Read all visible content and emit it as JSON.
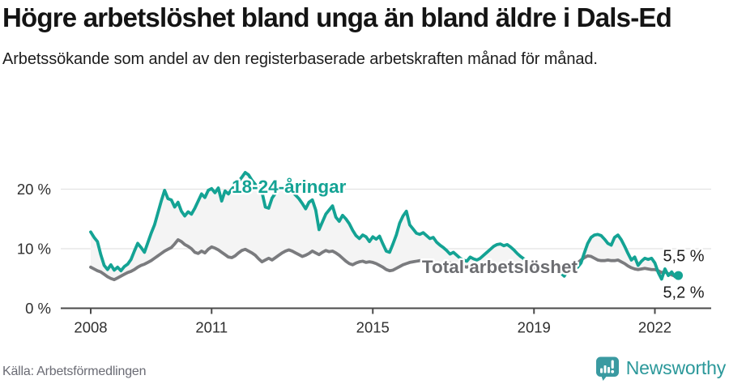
{
  "header": {
    "title": "Högre arbetslöshet bland unga än bland äldre i Dals-Ed",
    "subtitle": "Arbetssökande som andel av den registerbaserade arbetskraften månad för månad."
  },
  "chart_data": {
    "type": "line",
    "x_start_year": 2008,
    "x_interval": "monthly",
    "x_end_label_period": "aug 2022",
    "ylim": [
      0,
      26
    ],
    "grid": "horizontal",
    "grid_color": "#e2e2e2",
    "axis_color": "#4a4a4a",
    "tick_label_color": "#2f2f2f",
    "band_fill": "#f4f4f4",
    "yticks": [
      {
        "value": 0,
        "label": "0 %"
      },
      {
        "value": 10,
        "label": "10 %"
      },
      {
        "value": 20,
        "label": "20 %"
      }
    ],
    "xticks": [
      {
        "value": 2008,
        "label": "2008"
      },
      {
        "value": 2011,
        "label": "2011"
      },
      {
        "value": 2015,
        "label": "2015"
      },
      {
        "value": 2019,
        "label": "2019"
      },
      {
        "value": 2022,
        "label": "2022"
      }
    ],
    "series": [
      {
        "name": "18-24-åringar",
        "color": "#14a394",
        "end_dot": true,
        "values": [
          12.8,
          11.9,
          11.2,
          9.0,
          7.2,
          6.5,
          7.3,
          6.4,
          6.9,
          6.3,
          7.0,
          7.4,
          8.2,
          9.6,
          10.9,
          10.2,
          9.4,
          11.0,
          12.6,
          14.0,
          16.0,
          18.0,
          19.8,
          18.4,
          18.2,
          17.0,
          17.8,
          16.3,
          15.5,
          16.2,
          15.8,
          16.8,
          18.0,
          19.2,
          18.6,
          19.8,
          20.1,
          19.4,
          20.2,
          18.0,
          19.7,
          19.2,
          20.0,
          20.6,
          21.3,
          22.0,
          22.8,
          22.4,
          21.5,
          20.8,
          20.3,
          19.5,
          17.0,
          16.8,
          18.5,
          19.3,
          20.0,
          20.4,
          19.7,
          20.3,
          19.5,
          19.0,
          18.4,
          17.6,
          16.7,
          17.8,
          18.2,
          16.5,
          13.2,
          14.5,
          15.8,
          16.5,
          17.2,
          15.3,
          14.6,
          15.6,
          15.0,
          14.2,
          13.1,
          12.2,
          11.7,
          12.3,
          12.0,
          11.2,
          12.0,
          11.6,
          12.1,
          10.8,
          9.6,
          9.4,
          10.8,
          12.3,
          14.3,
          15.5,
          16.3,
          14.0,
          13.3,
          12.6,
          12.4,
          12.7,
          12.2,
          11.7,
          11.9,
          11.1,
          10.6,
          10.2,
          9.7,
          9.1,
          9.4,
          8.9,
          8.4,
          8.1,
          7.9,
          8.6,
          8.3,
          8.1,
          8.4,
          8.9,
          9.4,
          9.9,
          10.4,
          10.7,
          10.8,
          10.5,
          10.7,
          10.3,
          9.8,
          9.2,
          8.7,
          8.3,
          7.9,
          7.6,
          7.3,
          7.0,
          6.7,
          6.4,
          6.2,
          6.6,
          6.7,
          6.3,
          5.9,
          5.4,
          6.3,
          6.9,
          6.6,
          6.9,
          7.6,
          9.3,
          10.9,
          11.9,
          12.3,
          12.4,
          12.2,
          11.6,
          10.9,
          10.6,
          11.9,
          12.3,
          11.5,
          10.4,
          9.2,
          8.1,
          8.6,
          7.2,
          7.9,
          8.4,
          8.2,
          8.4,
          7.6,
          6.0,
          4.9,
          6.6,
          5.5,
          6.1,
          5.3,
          5.5
        ]
      },
      {
        "name": "Total arbetslöshet",
        "color": "#7a7b7e",
        "end_dot": false,
        "values": [
          6.9,
          6.6,
          6.3,
          6.1,
          5.7,
          5.3,
          5.0,
          4.8,
          5.1,
          5.4,
          5.7,
          6.0,
          6.2,
          6.5,
          6.9,
          7.2,
          7.4,
          7.7,
          8.0,
          8.4,
          8.8,
          9.2,
          9.6,
          9.9,
          10.2,
          10.8,
          11.5,
          11.2,
          10.7,
          10.4,
          10.0,
          9.4,
          9.2,
          9.6,
          9.3,
          9.9,
          10.3,
          10.1,
          9.8,
          9.4,
          9.0,
          8.6,
          8.5,
          8.8,
          9.3,
          9.7,
          9.9,
          9.6,
          9.3,
          8.9,
          8.3,
          7.8,
          8.1,
          8.4,
          8.1,
          8.5,
          8.9,
          9.3,
          9.6,
          9.8,
          9.6,
          9.3,
          9.0,
          8.7,
          8.9,
          9.2,
          9.6,
          9.3,
          9.0,
          9.4,
          9.7,
          9.5,
          9.6,
          9.3,
          8.9,
          8.4,
          7.9,
          7.5,
          7.3,
          7.6,
          7.8,
          7.9,
          7.7,
          7.8,
          7.7,
          7.5,
          7.2,
          6.9,
          6.5,
          6.3,
          6.4,
          6.7,
          7.0,
          7.3,
          7.5,
          7.7,
          7.8,
          7.9,
          8.0,
          7.9,
          7.7,
          7.5,
          7.3,
          7.1,
          7.2,
          7.4,
          7.5,
          7.6,
          7.5,
          7.3,
          7.1,
          7.0,
          6.9,
          7.1,
          7.3,
          7.2,
          7.1,
          7.3,
          7.5,
          7.6,
          7.5,
          7.3,
          7.1,
          6.9,
          6.7,
          6.6,
          6.5,
          6.4,
          6.3,
          6.5,
          6.7,
          6.8,
          6.7,
          6.6,
          6.5,
          6.4,
          6.5,
          6.7,
          7.0,
          6.8,
          6.6,
          7.0,
          7.3,
          7.1,
          7.3,
          7.6,
          8.1,
          8.5,
          8.8,
          8.7,
          8.4,
          8.1,
          8.0,
          8.0,
          8.1,
          8.0,
          8.0,
          8.1,
          7.8,
          7.5,
          7.1,
          6.8,
          6.6,
          6.5,
          6.6,
          6.7,
          6.6,
          6.5,
          6.5,
          6.3,
          6.0,
          6.1,
          5.8,
          5.6,
          5.4,
          5.2
        ]
      }
    ],
    "annotations": [
      {
        "text": "18-24-åringar",
        "x": 2012.92,
        "y": 19.4,
        "color": "#14a394",
        "weight": "bold",
        "anchor": "middle",
        "size": 22.5
      },
      {
        "text": "Total arbetslöshet",
        "x": 2018.15,
        "y": 5.9,
        "color": "#6c6d71",
        "weight": "bold",
        "anchor": "middle",
        "size": 22.5
      },
      {
        "text": "5,5 %",
        "x": 2022.2,
        "y": 7.9,
        "color": "#1c1c1c",
        "weight": "normal",
        "anchor": "start",
        "size": 20
      },
      {
        "text": "5,2 %",
        "x": 2022.2,
        "y": 1.8,
        "color": "#1c1c1c",
        "weight": "normal",
        "anchor": "start",
        "size": 20
      }
    ]
  },
  "footer": {
    "source": "Källa: Arbetsförmedlingen",
    "brand": "Newsworthy",
    "brand_icon": "newsworthy-speech-bubble-chart-icon",
    "brand_color": "#3a9aa1"
  }
}
